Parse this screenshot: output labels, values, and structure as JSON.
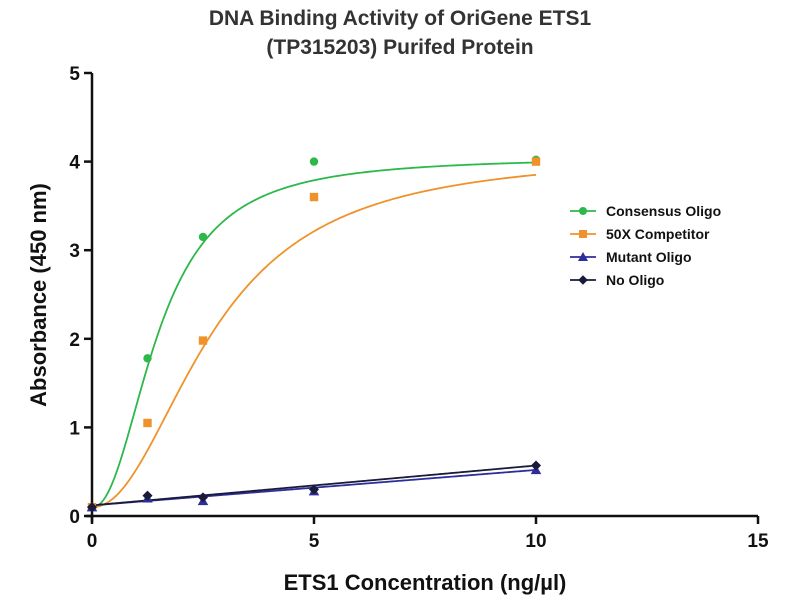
{
  "chart_data": {
    "type": "scatter",
    "title_lines": [
      "DNA Binding Activity of OriGene ETS1",
      "(TP315203) Purifed Protein"
    ],
    "xlabel": "ETS1 Concentration (ng/µl)",
    "ylabel": "Absorbance (450 nm)",
    "xlim": [
      0,
      15
    ],
    "ylim": [
      0,
      5
    ],
    "xticks": [
      0,
      5,
      10,
      15
    ],
    "yticks": [
      0,
      1,
      2,
      3,
      4,
      5
    ],
    "grid": false,
    "legend_position": "right",
    "series": [
      {
        "name": "Consensus Oligo",
        "color": "#2db84b",
        "marker": "circle",
        "x": [
          0,
          1.25,
          2.5,
          5,
          10
        ],
        "y": [
          0.1,
          1.78,
          3.15,
          4.0,
          4.02
        ],
        "fit": {
          "model": "hill",
          "top": 4.05,
          "bottom": 0.1,
          "ec50": 1.5,
          "hill": 2.2
        }
      },
      {
        "name": "50X Competitor",
        "color": "#f0922b",
        "marker": "square",
        "x": [
          0,
          1.25,
          2.5,
          5,
          10
        ],
        "y": [
          0.1,
          1.05,
          1.98,
          3.6,
          4.0
        ],
        "fit": {
          "model": "hill",
          "top": 4.1,
          "bottom": 0.1,
          "ec50": 2.75,
          "hill": 2.1
        }
      },
      {
        "name": "Mutant Oligo",
        "color": "#2d2d9c",
        "marker": "triangle",
        "x": [
          0,
          1.25,
          2.5,
          5,
          10
        ],
        "y": [
          0.1,
          0.2,
          0.17,
          0.28,
          0.52
        ],
        "fit": {
          "model": "linear",
          "intercept": 0.12,
          "slope": 0.04
        }
      },
      {
        "name": "No Oligo",
        "color": "#1a1a3a",
        "marker": "diamond",
        "x": [
          0,
          1.25,
          2.5,
          5,
          10
        ],
        "y": [
          0.1,
          0.23,
          0.21,
          0.3,
          0.57
        ],
        "fit": {
          "model": "linear",
          "intercept": 0.12,
          "slope": 0.045
        }
      }
    ]
  }
}
